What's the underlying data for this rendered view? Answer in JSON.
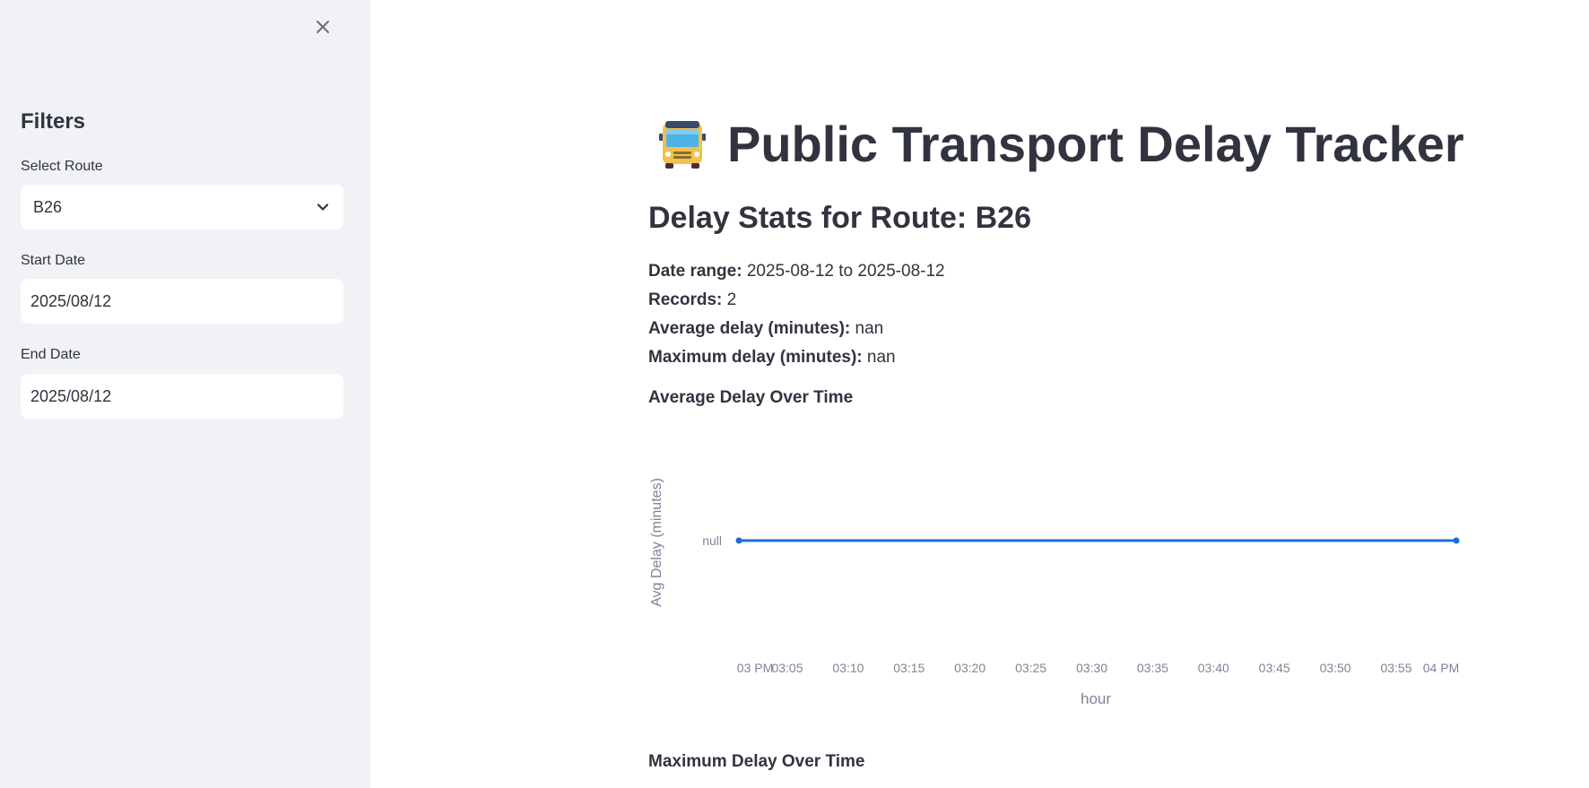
{
  "sidebar": {
    "heading": "Filters",
    "route": {
      "label": "Select Route",
      "value": "B26"
    },
    "start_date": {
      "label": "Start Date",
      "value": "2025/08/12"
    },
    "end_date": {
      "label": "End Date",
      "value": "2025/08/12"
    }
  },
  "main": {
    "title": "Public Transport Delay Tracker",
    "subtitle": "Delay Stats for Route: B26",
    "stats": {
      "date_range_label": "Date range:",
      "date_range_value": "2025-08-12 to 2025-08-12",
      "records_label": "Records:",
      "records_value": "2",
      "avg_label": "Average delay (minutes):",
      "avg_value": "nan",
      "max_label": "Maximum delay (minutes):",
      "max_value": "nan"
    },
    "avg_chart_title": "Average Delay Over Time",
    "max_chart_title": "Maximum Delay Over Time"
  },
  "colors": {
    "line": "#1a6fd1",
    "sidebar_bg": "#f0f2f6",
    "text": "#31333f",
    "axis_text": "#808495"
  },
  "chart_data": {
    "type": "line",
    "title": "Average Delay Over Time",
    "xlabel": "hour",
    "ylabel": "Avg Delay (minutes)",
    "x_ticks": [
      "03 PM",
      "03:05",
      "03:10",
      "03:15",
      "03:20",
      "03:25",
      "03:30",
      "03:35",
      "03:40",
      "03:45",
      "03:50",
      "03:55",
      "04 PM"
    ],
    "y_ticks": [
      "null"
    ],
    "series": [
      {
        "x": [
          "03 PM",
          "04 PM"
        ],
        "values": [
          null,
          null
        ]
      }
    ]
  }
}
